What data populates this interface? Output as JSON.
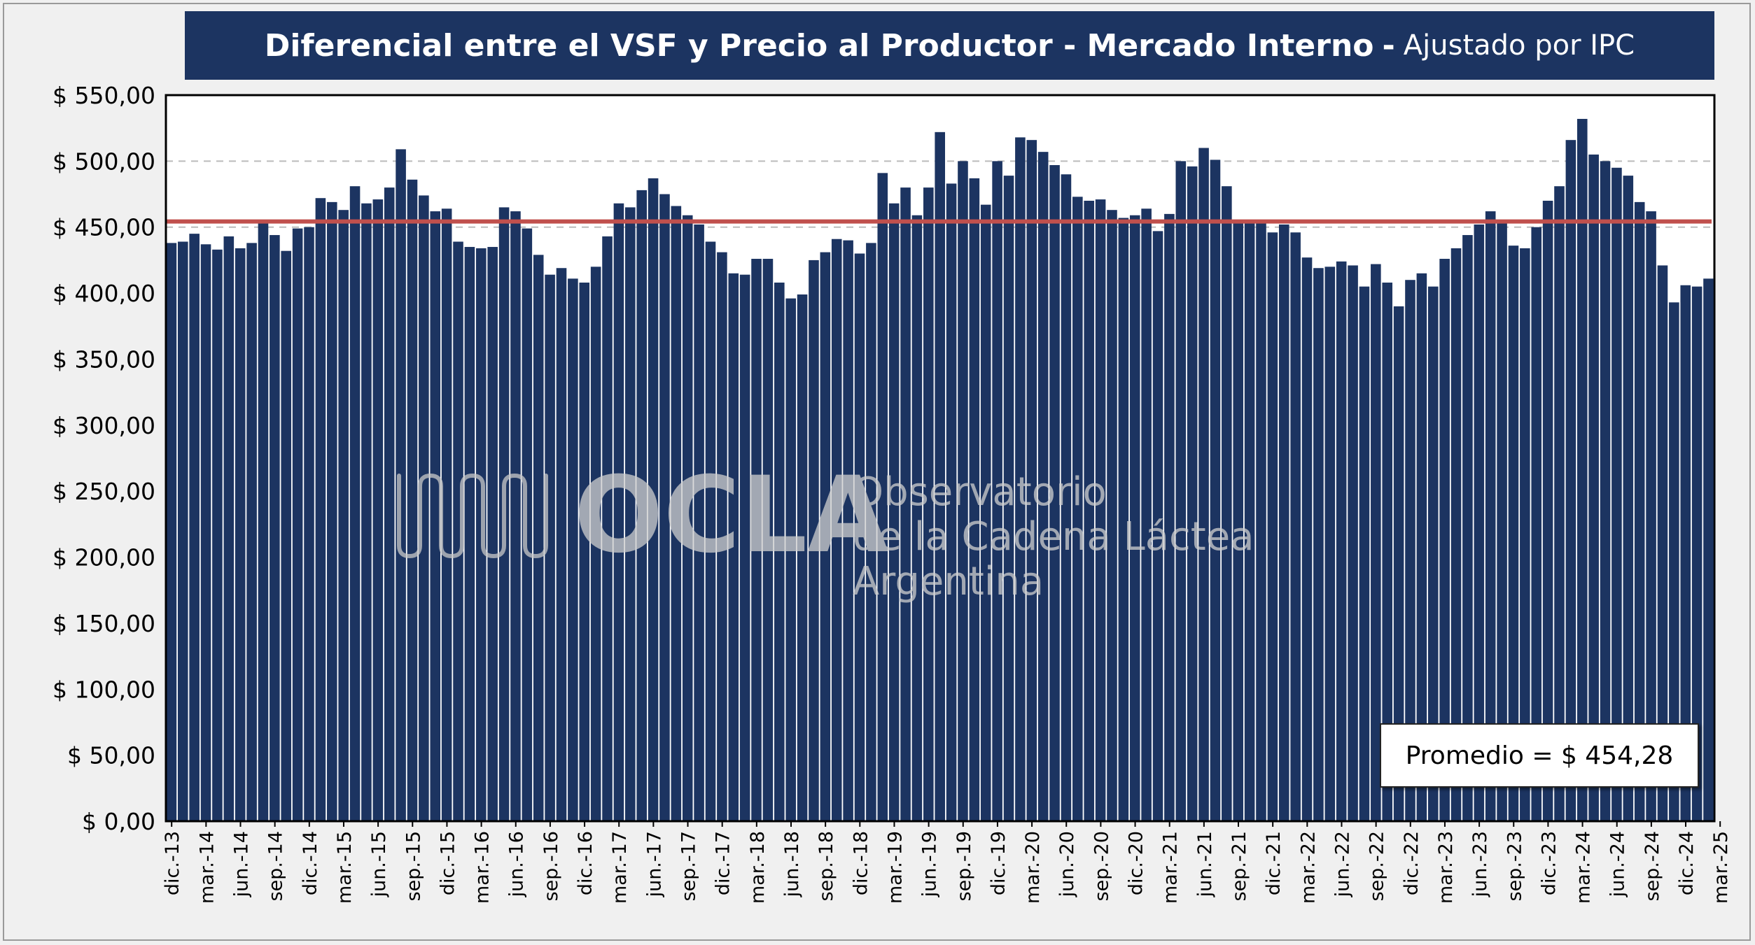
{
  "title": {
    "main": "Diferencial entre el VSF y Precio al Productor - Mercado Interno",
    "separator": "-",
    "subtitle": "Ajustado por IPC"
  },
  "watermark": {
    "logo_text": "OCLA",
    "line1": "Observatorio",
    "line2": "de la Cadena Láctea",
    "line3": "Argentina"
  },
  "average_label": "Promedio = $ 454,28",
  "colors": {
    "bar": "#1c3461",
    "average_line": "#c0504d",
    "title_bg": "#1c3461",
    "gridline": "#bbbbbb"
  },
  "chart_data": {
    "type": "bar",
    "title": "Diferencial entre el VSF y Precio al Productor - Mercado Interno - Ajustado por IPC",
    "xlabel": "",
    "ylabel": "",
    "ylim": [
      0,
      550
    ],
    "yticks": [
      0,
      50,
      100,
      150,
      200,
      250,
      300,
      350,
      400,
      450,
      500,
      550
    ],
    "ytick_labels": [
      "$ 0,00",
      "$ 50,00",
      "$ 100,00",
      "$ 150,00",
      "$ 200,00",
      "$ 250,00",
      "$ 300,00",
      "$ 350,00",
      "$ 400,00",
      "$ 450,00",
      "$ 500,00",
      "$ 550,00"
    ],
    "grid": "horizontal dashed at 450 and 500",
    "average": 454.28,
    "xtick_labels": [
      "dic.-13",
      "mar.-14",
      "jun.-14",
      "sep.-14",
      "dic.-14",
      "mar.-15",
      "jun.-15",
      "sep.-15",
      "dic.-15",
      "mar.-16",
      "jun.-16",
      "sep.-16",
      "dic.-16",
      "mar.-17",
      "jun.-17",
      "sep.-17",
      "dic.-17",
      "mar.-18",
      "jun.-18",
      "sep.-18",
      "dic.-18",
      "mar.-19",
      "jun.-19",
      "sep.-19",
      "dic.-19",
      "mar.-20",
      "jun.-20",
      "sep.-20",
      "dic.-20",
      "mar.-21",
      "jun.-21",
      "sep.-21",
      "dic.-21",
      "mar.-22",
      "jun.-22",
      "sep.-22",
      "dic.-22",
      "mar.-23",
      "jun.-23",
      "sep.-23",
      "dic.-23",
      "mar.-24",
      "jun.-24",
      "sep.-24",
      "dic.-24",
      "mar.-25"
    ],
    "tick_every": 3,
    "values": [
      438,
      439,
      445,
      437,
      433,
      443,
      434,
      438,
      453,
      444,
      432,
      449,
      450,
      472,
      469,
      463,
      481,
      468,
      471,
      480,
      509,
      486,
      474,
      462,
      464,
      439,
      435,
      434,
      435,
      465,
      462,
      449,
      429,
      414,
      419,
      411,
      408,
      420,
      443,
      468,
      465,
      478,
      487,
      475,
      466,
      459,
      452,
      439,
      431,
      415,
      414,
      426,
      426,
      408,
      396,
      399,
      425,
      431,
      441,
      440,
      430,
      438,
      491,
      468,
      480,
      459,
      480,
      522,
      483,
      500,
      487,
      467,
      500,
      489,
      518,
      516,
      507,
      497,
      490,
      473,
      470,
      471,
      463,
      457,
      459,
      464,
      447,
      460,
      500,
      496,
      510,
      501,
      481,
      454,
      455,
      453,
      446,
      452,
      446,
      427,
      419,
      420,
      424,
      421,
      405,
      422,
      408,
      390,
      410,
      415,
      405,
      426,
      434,
      444,
      452,
      462,
      453,
      436,
      434,
      450,
      470,
      481,
      516,
      532,
      505,
      500,
      495,
      489,
      469,
      462,
      421,
      393,
      406,
      405,
      411
    ]
  }
}
